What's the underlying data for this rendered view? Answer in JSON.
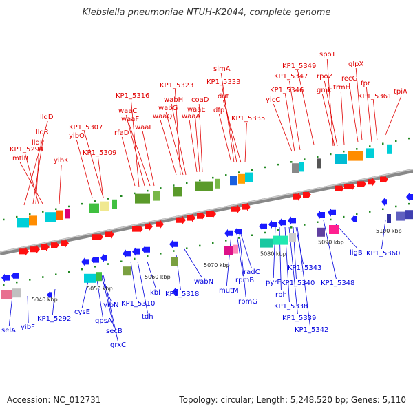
{
  "title": "Klebsiella pneumoniae NTUH-K2044, complete genome",
  "accession": "Accession: NC_012731",
  "summary": "Topology: circular; Length: 5,248,520 bp; Genes: 5,110",
  "colors": {
    "forward_label": "#e00000",
    "reverse_label": "#0000dd",
    "forward_arrow": "#ff1010",
    "reverse_arrow": "#1a1aff",
    "backbone": "#888888",
    "backbone_light": "#cccccc",
    "tick": "#228822"
  },
  "scale_ticks": [
    "5040 kbp",
    "5050 kbp",
    "5060 kbp",
    "5070 kbp",
    "5080 kbp",
    "5090 kbp",
    "5100 kbp"
  ],
  "forward_labels": [
    "lldD",
    "lldR",
    "lldP",
    "KP1_5294",
    "mtlR",
    "yibK",
    "KP1_5307",
    "yibO",
    "KP1_5309",
    "KP1_5316",
    "waaC",
    "waaF",
    "rfaD",
    "waaL",
    "KP1_5323",
    "wabH",
    "wabG",
    "waaQ",
    "coaD",
    "waaE",
    "waaA",
    "slmA",
    "KP1_5333",
    "dut",
    "dfp",
    "KP1_5335",
    "KP1_5347",
    "KP1_5346",
    "yicC",
    "KP1_5349",
    "spoT",
    "rpoZ",
    "gmk",
    "trmH",
    "glpX",
    "recG",
    "fpr",
    "KP1_5361",
    "tpiA"
  ],
  "reverse_labels": [
    "selA",
    "yibF",
    "KP1_5292",
    "cysE",
    "gpsA",
    "yibN",
    "secB",
    "grxC",
    "KP1_5310",
    "tdh",
    "kbl",
    "KP1_5318",
    "wabN",
    "mutM",
    "rpmB",
    "rpmG",
    "radC",
    "pyrE",
    "rph",
    "KP1_5338",
    "KP1_5339",
    "KP1_5340",
    "KP1_5343",
    "KP1_5342",
    "KP1_5348",
    "ligB",
    "KP1_5360"
  ]
}
